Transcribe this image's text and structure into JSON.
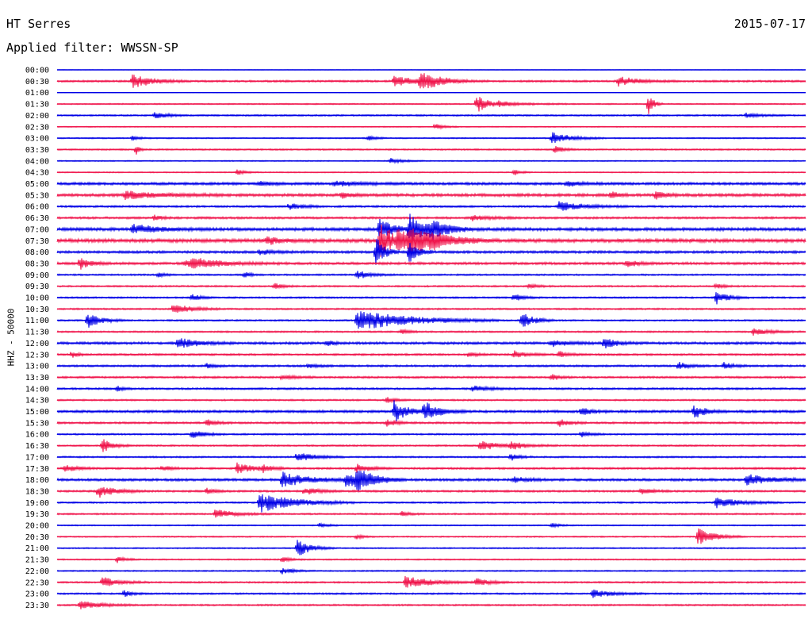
{
  "header": {
    "station": "HT Serres",
    "date": "2015-07-17",
    "filter": "Applied filter: WWSSN-SP"
  },
  "colors": {
    "odd": "#0000e6",
    "even": "#f0144b"
  },
  "chart_data": {
    "type": "line",
    "title": "",
    "ylabel": "HHZ - 50000",
    "xlabel": "",
    "rows": [
      "00:00",
      "00:30",
      "01:00",
      "01:30",
      "02:00",
      "02:30",
      "03:00",
      "03:30",
      "04:00",
      "04:30",
      "05:00",
      "05:30",
      "06:00",
      "06:30",
      "07:00",
      "07:30",
      "08:00",
      "08:30",
      "09:00",
      "09:30",
      "10:00",
      "10:30",
      "11:00",
      "11:30",
      "12:00",
      "12:30",
      "13:00",
      "13:30",
      "14:00",
      "14:30",
      "15:00",
      "15:30",
      "16:00",
      "16:30",
      "17:00",
      "17:30",
      "18:00",
      "18:30",
      "19:00",
      "19:30",
      "20:00",
      "20:30",
      "21:00",
      "21:30",
      "22:00",
      "22:30",
      "23:00",
      "23:30"
    ],
    "noise": [
      0.3,
      1.2,
      0.3,
      0.8,
      1.0,
      0.6,
      0.8,
      0.9,
      0.7,
      0.7,
      1.6,
      1.8,
      1.2,
      1.3,
      1.9,
      2.2,
      1.5,
      1.5,
      1.0,
      1.0,
      1.0,
      1.0,
      1.0,
      1.0,
      1.5,
      1.2,
      1.2,
      1.2,
      1.2,
      1.0,
      1.5,
      1.2,
      1.0,
      1.0,
      1.0,
      1.2,
      1.5,
      1.2,
      1.0,
      1.0,
      0.7,
      0.8,
      0.8,
      0.8,
      0.8,
      1.0,
      1.0,
      1.0
    ],
    "events": [
      [],
      [
        [
          0.1,
          9,
          24
        ],
        [
          0.45,
          6,
          40
        ],
        [
          0.485,
          13,
          20
        ],
        [
          0.75,
          6,
          24
        ]
      ],
      [],
      [
        [
          0.56,
          12,
          14
        ],
        [
          0.59,
          3,
          30
        ],
        [
          0.79,
          14,
          6
        ]
      ],
      [
        [
          0.13,
          5,
          14
        ],
        [
          0.92,
          3,
          16
        ]
      ],
      [
        [
          0.505,
          4,
          10
        ]
      ],
      [
        [
          0.1,
          3,
          8
        ],
        [
          0.415,
          3,
          10
        ],
        [
          0.66,
          8,
          22
        ]
      ],
      [
        [
          0.105,
          7,
          4
        ],
        [
          0.665,
          5,
          10
        ]
      ],
      [
        [
          0.445,
          4,
          14
        ]
      ],
      [
        [
          0.24,
          4,
          10
        ],
        [
          0.61,
          4,
          8
        ]
      ],
      [
        [
          0.27,
          3,
          16
        ],
        [
          0.37,
          3,
          30
        ],
        [
          0.68,
          3,
          20
        ]
      ],
      [
        [
          0.09,
          5,
          40
        ],
        [
          0.38,
          4,
          10
        ],
        [
          0.74,
          5,
          8
        ],
        [
          0.8,
          7,
          10
        ]
      ],
      [
        [
          0.31,
          4,
          16
        ],
        [
          0.67,
          6,
          30
        ]
      ],
      [
        [
          0.13,
          4,
          8
        ],
        [
          0.555,
          4,
          20
        ]
      ],
      [
        [
          0.1,
          6,
          30
        ],
        [
          0.43,
          14,
          16
        ],
        [
          0.47,
          20,
          24
        ],
        [
          0.5,
          8,
          20
        ]
      ],
      [
        [
          0.28,
          6,
          14
        ],
        [
          0.43,
          26,
          18
        ],
        [
          0.455,
          10,
          40
        ],
        [
          0.47,
          12,
          30
        ],
        [
          0.5,
          6,
          20
        ]
      ],
      [
        [
          0.27,
          3,
          20
        ],
        [
          0.425,
          22,
          10
        ],
        [
          0.47,
          16,
          10
        ]
      ],
      [
        [
          0.03,
          8,
          12
        ],
        [
          0.17,
          4,
          24
        ],
        [
          0.18,
          5,
          40
        ],
        [
          0.76,
          5,
          12
        ]
      ],
      [
        [
          0.135,
          3,
          8
        ],
        [
          0.25,
          4,
          8
        ],
        [
          0.4,
          6,
          16
        ]
      ],
      [
        [
          0.29,
          4,
          10
        ],
        [
          0.63,
          3,
          10
        ],
        [
          0.88,
          3,
          10
        ]
      ],
      [
        [
          0.18,
          5,
          10
        ],
        [
          0.61,
          5,
          12
        ],
        [
          0.88,
          9,
          14
        ]
      ],
      [
        [
          0.155,
          8,
          20
        ]
      ],
      [
        [
          0.04,
          10,
          16
        ],
        [
          0.4,
          14,
          60
        ],
        [
          0.62,
          12,
          14
        ]
      ],
      [
        [
          0.46,
          3,
          10
        ],
        [
          0.93,
          4,
          20
        ]
      ],
      [
        [
          0.16,
          7,
          24
        ],
        [
          0.36,
          4,
          8
        ],
        [
          0.66,
          4,
          20
        ],
        [
          0.73,
          8,
          14
        ]
      ],
      [
        [
          0.02,
          4,
          8
        ],
        [
          0.55,
          4,
          10
        ],
        [
          0.61,
          5,
          14
        ],
        [
          0.67,
          4,
          12
        ]
      ],
      [
        [
          0.2,
          3,
          10
        ],
        [
          0.335,
          3,
          10
        ],
        [
          0.83,
          5,
          12
        ],
        [
          0.89,
          4,
          14
        ]
      ],
      [
        [
          0.3,
          3,
          16
        ],
        [
          0.66,
          4,
          10
        ]
      ],
      [
        [
          0.08,
          3,
          8
        ],
        [
          0.555,
          4,
          20
        ]
      ],
      [
        [
          0.44,
          4,
          10
        ]
      ],
      [
        [
          0.45,
          14,
          16
        ],
        [
          0.49,
          12,
          18
        ],
        [
          0.7,
          5,
          12
        ],
        [
          0.85,
          9,
          14
        ]
      ],
      [
        [
          0.2,
          4,
          12
        ],
        [
          0.44,
          6,
          10
        ],
        [
          0.67,
          5,
          12
        ]
      ],
      [
        [
          0.18,
          6,
          14
        ],
        [
          0.7,
          4,
          10
        ]
      ],
      [
        [
          0.06,
          9,
          12
        ],
        [
          0.565,
          7,
          20
        ],
        [
          0.605,
          5,
          20
        ]
      ],
      [
        [
          0.32,
          7,
          20
        ],
        [
          0.605,
          5,
          10
        ]
      ],
      [
        [
          0.01,
          5,
          14
        ],
        [
          0.14,
          4,
          12
        ],
        [
          0.24,
          7,
          20
        ],
        [
          0.275,
          4,
          12
        ],
        [
          0.4,
          6,
          14
        ]
      ],
      [
        [
          0.3,
          10,
          30
        ],
        [
          0.385,
          10,
          24
        ],
        [
          0.4,
          12,
          20
        ],
        [
          0.61,
          4,
          16
        ],
        [
          0.92,
          7,
          30
        ]
      ],
      [
        [
          0.055,
          8,
          20
        ],
        [
          0.2,
          4,
          10
        ],
        [
          0.33,
          5,
          16
        ],
        [
          0.78,
          5,
          12
        ]
      ],
      [
        [
          0.27,
          13,
          40
        ],
        [
          0.88,
          7,
          28
        ]
      ],
      [
        [
          0.21,
          6,
          24
        ],
        [
          0.46,
          3,
          10
        ]
      ],
      [
        [
          0.35,
          3,
          10
        ],
        [
          0.66,
          3,
          10
        ]
      ],
      [
        [
          0.4,
          3,
          8
        ],
        [
          0.855,
          11,
          20
        ]
      ],
      [
        [
          0.32,
          12,
          16
        ]
      ],
      [
        [
          0.08,
          4,
          10
        ],
        [
          0.3,
          4,
          10
        ]
      ],
      [
        [
          0.3,
          4,
          14
        ]
      ],
      [
        [
          0.06,
          7,
          20
        ],
        [
          0.465,
          8,
          30
        ],
        [
          0.56,
          6,
          14
        ]
      ],
      [
        [
          0.09,
          4,
          10
        ],
        [
          0.715,
          5,
          24
        ]
      ],
      [
        [
          0.03,
          6,
          24
        ]
      ]
    ]
  }
}
